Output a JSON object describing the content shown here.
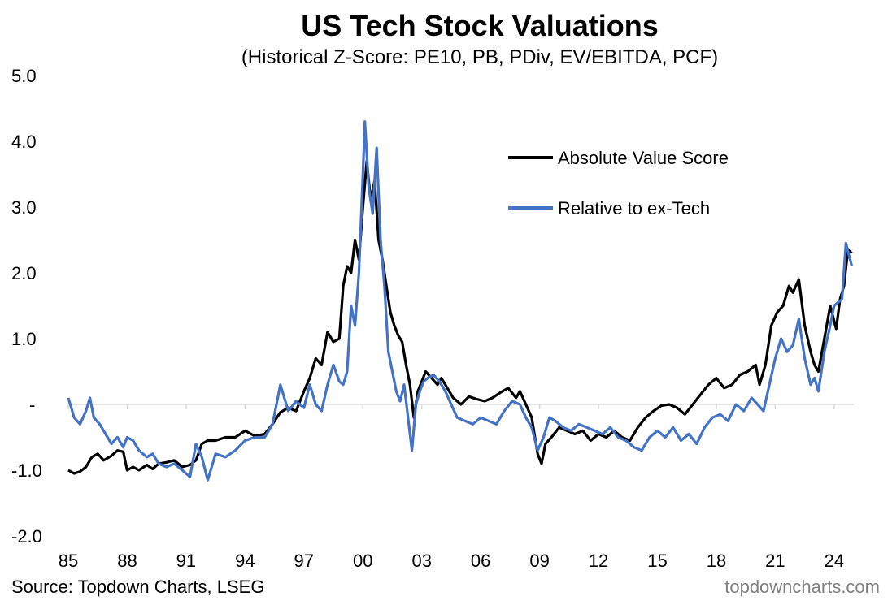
{
  "chart_data": {
    "type": "line",
    "title": "US Tech Stock Valuations",
    "subtitle": "(Historical Z-Score: PE10, PB, PDiv, EV/EBITDA, PCF)",
    "xlabel": "",
    "ylabel": "",
    "xlim": [
      1985,
      2025
    ],
    "ylim": [
      -2,
      5
    ],
    "y_ticks": [
      5,
      4,
      3,
      2,
      1,
      0,
      -1,
      -2
    ],
    "y_tick_labels": [
      "5.0",
      "4.0",
      "3.0",
      "2.0",
      "1.0",
      "-",
      "-1.0",
      "-2.0"
    ],
    "x_ticks": [
      1985,
      1988,
      1991,
      1994,
      1997,
      2000,
      2003,
      2006,
      2009,
      2012,
      2015,
      2018,
      2021,
      2024
    ],
    "x_tick_labels": [
      "85",
      "88",
      "91",
      "94",
      "97",
      "00",
      "03",
      "06",
      "09",
      "12",
      "15",
      "18",
      "21",
      "24"
    ],
    "grid": false,
    "legend_position": "top-right",
    "series": [
      {
        "name": "Absolute Value Score",
        "color": "#000000",
        "x": [
          1985.0,
          1985.3,
          1985.6,
          1985.9,
          1986.2,
          1986.5,
          1986.8,
          1987.2,
          1987.5,
          1987.8,
          1988.0,
          1988.3,
          1988.6,
          1989.0,
          1989.3,
          1989.6,
          1990.0,
          1990.4,
          1990.8,
          1991.2,
          1991.5,
          1991.8,
          1992.1,
          1992.5,
          1993.0,
          1993.5,
          1994.0,
          1994.5,
          1995.0,
          1995.4,
          1995.8,
          1996.2,
          1996.6,
          1997.0,
          1997.3,
          1997.6,
          1997.9,
          1998.2,
          1998.5,
          1998.8,
          1999.0,
          1999.2,
          1999.4,
          1999.6,
          1999.8,
          2000.0,
          2000.2,
          2000.4,
          2000.6,
          2000.8,
          2001.0,
          2001.2,
          2001.4,
          2001.6,
          2001.8,
          2002.0,
          2002.2,
          2002.4,
          2002.6,
          2002.8,
          2003.0,
          2003.2,
          2003.5,
          2003.8,
          2004.0,
          2004.3,
          2004.6,
          2005.0,
          2005.4,
          2005.8,
          2006.2,
          2006.6,
          2007.0,
          2007.4,
          2007.8,
          2008.0,
          2008.3,
          2008.6,
          2008.9,
          2009.1,
          2009.3,
          2009.6,
          2010.0,
          2010.4,
          2010.8,
          2011.2,
          2011.6,
          2012.0,
          2012.4,
          2012.8,
          2013.2,
          2013.6,
          2014.0,
          2014.4,
          2014.8,
          2015.2,
          2015.6,
          2016.0,
          2016.4,
          2016.8,
          2017.2,
          2017.6,
          2018.0,
          2018.4,
          2018.8,
          2019.2,
          2019.6,
          2020.0,
          2020.2,
          2020.5,
          2020.8,
          2021.1,
          2021.4,
          2021.7,
          2021.9,
          2022.2,
          2022.5,
          2022.8,
          2023.0,
          2023.2,
          2023.5,
          2023.8,
          2024.1,
          2024.3,
          2024.5,
          2024.7,
          2024.9
        ],
        "y": [
          -1.0,
          -1.05,
          -1.02,
          -0.95,
          -0.8,
          -0.75,
          -0.85,
          -0.78,
          -0.7,
          -0.72,
          -1.0,
          -0.95,
          -1.0,
          -0.92,
          -0.98,
          -0.9,
          -0.88,
          -0.85,
          -0.95,
          -0.92,
          -0.85,
          -0.6,
          -0.55,
          -0.55,
          -0.5,
          -0.5,
          -0.4,
          -0.48,
          -0.45,
          -0.3,
          -0.12,
          -0.05,
          -0.1,
          0.2,
          0.4,
          0.7,
          0.6,
          1.1,
          0.95,
          1.0,
          1.8,
          2.1,
          2.0,
          2.5,
          2.2,
          3.0,
          3.7,
          3.1,
          3.4,
          2.5,
          2.2,
          1.8,
          1.4,
          1.2,
          1.05,
          0.95,
          0.6,
          0.3,
          -0.2,
          0.2,
          0.35,
          0.5,
          0.4,
          0.3,
          0.4,
          0.25,
          0.1,
          0.0,
          0.12,
          0.08,
          0.05,
          0.1,
          0.18,
          0.25,
          0.1,
          0.2,
          0.0,
          -0.2,
          -0.75,
          -0.9,
          -0.6,
          -0.5,
          -0.35,
          -0.4,
          -0.45,
          -0.4,
          -0.55,
          -0.45,
          -0.5,
          -0.4,
          -0.5,
          -0.55,
          -0.35,
          -0.2,
          -0.1,
          -0.02,
          0.0,
          -0.05,
          -0.15,
          0.0,
          0.15,
          0.3,
          0.4,
          0.25,
          0.3,
          0.45,
          0.5,
          0.6,
          0.3,
          0.6,
          1.2,
          1.4,
          1.5,
          1.8,
          1.7,
          1.9,
          1.2,
          0.8,
          0.6,
          0.5,
          1.0,
          1.5,
          1.15,
          1.6,
          1.8,
          2.35,
          2.3
        ]
      },
      {
        "name": "Relative to ex-Tech",
        "color": "#4472c4",
        "x": [
          1985.0,
          1985.3,
          1985.6,
          1985.9,
          1986.1,
          1986.3,
          1986.6,
          1986.9,
          1987.2,
          1987.5,
          1987.8,
          1988.0,
          1988.3,
          1988.6,
          1989.0,
          1989.3,
          1989.6,
          1990.0,
          1990.4,
          1990.8,
          1991.2,
          1991.5,
          1991.8,
          1992.1,
          1992.5,
          1993.0,
          1993.5,
          1994.0,
          1994.5,
          1995.0,
          1995.4,
          1995.8,
          1996.2,
          1996.6,
          1997.0,
          1997.3,
          1997.6,
          1997.9,
          1998.2,
          1998.5,
          1998.8,
          1999.0,
          1999.2,
          1999.4,
          1999.6,
          1999.8,
          2000.0,
          2000.1,
          2000.3,
          2000.5,
          2000.7,
          2000.9,
          2001.1,
          2001.3,
          2001.5,
          2001.7,
          2001.9,
          2002.1,
          2002.3,
          2002.5,
          2002.7,
          2002.9,
          2003.1,
          2003.3,
          2003.6,
          2003.9,
          2004.2,
          2004.5,
          2004.8,
          2005.2,
          2005.6,
          2006.0,
          2006.4,
          2006.8,
          2007.2,
          2007.6,
          2008.0,
          2008.3,
          2008.6,
          2008.9,
          2009.2,
          2009.5,
          2009.8,
          2010.2,
          2010.6,
          2011.0,
          2011.4,
          2011.8,
          2012.2,
          2012.6,
          2013.0,
          2013.4,
          2013.8,
          2014.2,
          2014.6,
          2015.0,
          2015.4,
          2015.8,
          2016.2,
          2016.6,
          2017.0,
          2017.4,
          2017.8,
          2018.2,
          2018.6,
          2019.0,
          2019.4,
          2019.8,
          2020.1,
          2020.4,
          2020.7,
          2021.0,
          2021.3,
          2021.6,
          2021.9,
          2022.2,
          2022.5,
          2022.8,
          2023.0,
          2023.2,
          2023.5,
          2023.8,
          2024.0,
          2024.2,
          2024.4,
          2024.6,
          2024.9
        ],
        "y": [
          0.1,
          -0.2,
          -0.3,
          -0.1,
          0.1,
          -0.2,
          -0.3,
          -0.45,
          -0.6,
          -0.5,
          -0.65,
          -0.5,
          -0.55,
          -0.7,
          -0.8,
          -0.75,
          -0.9,
          -0.95,
          -0.9,
          -1.0,
          -1.1,
          -0.6,
          -0.8,
          -1.15,
          -0.75,
          -0.8,
          -0.7,
          -0.55,
          -0.5,
          -0.5,
          -0.3,
          0.3,
          -0.1,
          0.05,
          -0.05,
          0.3,
          0.0,
          -0.1,
          0.3,
          0.6,
          0.35,
          0.3,
          0.5,
          1.5,
          1.2,
          2.0,
          3.5,
          4.3,
          3.3,
          2.9,
          3.9,
          2.5,
          1.8,
          0.8,
          0.5,
          0.2,
          0.05,
          0.3,
          -0.2,
          -0.7,
          0.0,
          0.2,
          0.35,
          0.4,
          0.45,
          0.35,
          0.2,
          0.0,
          -0.2,
          -0.25,
          -0.3,
          -0.2,
          -0.25,
          -0.3,
          -0.1,
          0.05,
          0.0,
          -0.2,
          -0.35,
          -0.7,
          -0.5,
          -0.2,
          -0.25,
          -0.35,
          -0.4,
          -0.3,
          -0.35,
          -0.4,
          -0.45,
          -0.35,
          -0.5,
          -0.55,
          -0.65,
          -0.7,
          -0.5,
          -0.4,
          -0.5,
          -0.35,
          -0.55,
          -0.45,
          -0.6,
          -0.35,
          -0.2,
          -0.15,
          -0.25,
          0.0,
          -0.1,
          0.1,
          0.0,
          -0.1,
          0.3,
          0.7,
          1.0,
          0.8,
          0.9,
          1.3,
          0.7,
          0.3,
          0.4,
          0.2,
          0.8,
          1.2,
          1.5,
          1.55,
          1.6,
          2.45,
          2.1
        ]
      }
    ]
  },
  "footer": {
    "source": "Source: Topdown Charts, LSEG",
    "credit": "topdowncharts.com"
  }
}
